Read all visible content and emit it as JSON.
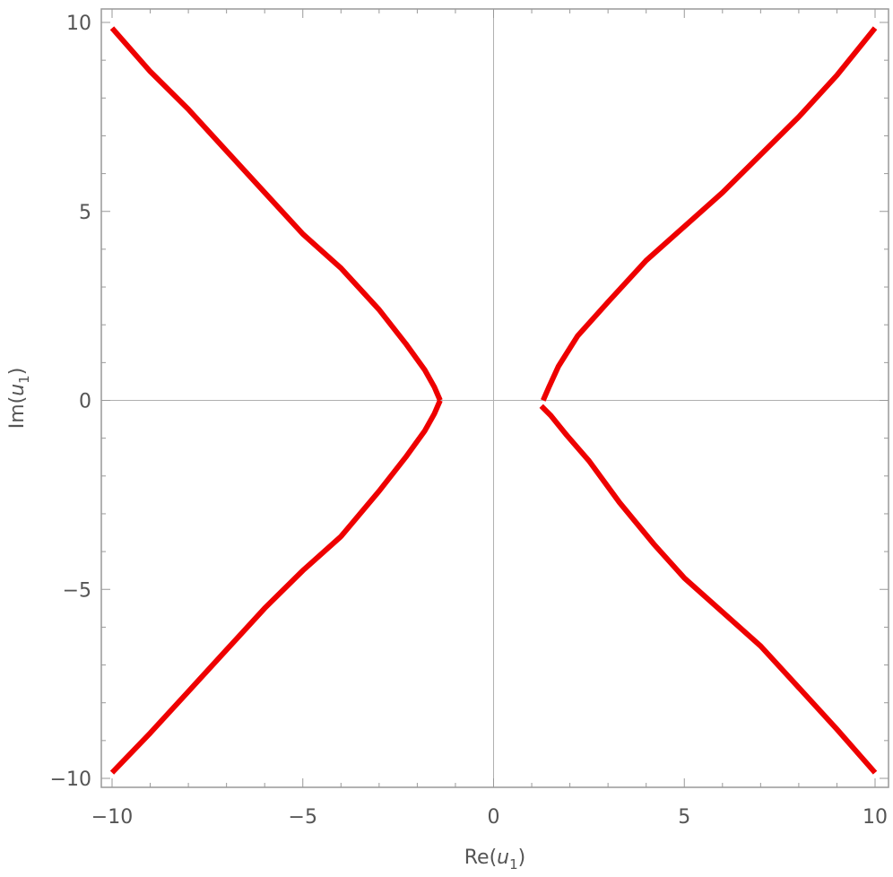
{
  "chart_data": {
    "type": "line",
    "title": "",
    "xlabel": "Re(u1)",
    "ylabel": "Im(u1)",
    "xlabel_base": "Re(",
    "xlabel_var": "u",
    "xlabel_sub": "1",
    "xlabel_close": ")",
    "ylabel_base": "Im(",
    "ylabel_var": "u",
    "ylabel_sub": "1",
    "ylabel_close": ")",
    "xlim": [
      -10,
      10
    ],
    "ylim": [
      -10,
      10
    ],
    "grid": false,
    "axes_through_origin": true,
    "line_color": "#ee0000",
    "x_major_ticks": [
      {
        "value": -10,
        "label": "−10"
      },
      {
        "value": -5,
        "label": "−5"
      },
      {
        "value": 0,
        "label": "0"
      },
      {
        "value": 5,
        "label": "5"
      },
      {
        "value": 10,
        "label": "10"
      }
    ],
    "y_major_ticks": [
      {
        "value": 10,
        "label": "10"
      },
      {
        "value": 5,
        "label": "5"
      },
      {
        "value": 0,
        "label": "0"
      },
      {
        "value": -5,
        "label": "−5"
      },
      {
        "value": -10,
        "label": "−10"
      }
    ],
    "minor_tick_step": 1,
    "series": [
      {
        "points": [
          [
            -10,
            9.85
          ],
          [
            -9,
            8.7
          ],
          [
            -8,
            7.7
          ],
          [
            -7,
            6.6
          ],
          [
            -6,
            5.5
          ],
          [
            -5,
            4.4
          ],
          [
            -4,
            3.5
          ],
          [
            -3,
            2.4
          ],
          [
            -2.3,
            1.5
          ],
          [
            -1.8,
            0.8
          ],
          [
            -1.55,
            0.35
          ],
          [
            -1.4,
            0
          ]
        ]
      },
      {
        "points": [
          [
            -1.4,
            0
          ],
          [
            -1.55,
            -0.35
          ],
          [
            -1.8,
            -0.8
          ],
          [
            -2.3,
            -1.5
          ],
          [
            -3,
            -2.4
          ],
          [
            -4,
            -3.6
          ],
          [
            -5,
            -4.5
          ],
          [
            -6,
            -5.5
          ],
          [
            -7,
            -6.6
          ],
          [
            -8,
            -7.7
          ],
          [
            -9,
            -8.8
          ],
          [
            -10,
            -9.85
          ]
        ]
      },
      {
        "points": [
          [
            10,
            9.85
          ],
          [
            9,
            8.6
          ],
          [
            8,
            7.5
          ],
          [
            7,
            6.5
          ],
          [
            6,
            5.5
          ],
          [
            5,
            4.6
          ],
          [
            4,
            3.7
          ],
          [
            3,
            2.6
          ],
          [
            2.2,
            1.7
          ],
          [
            1.7,
            0.9
          ],
          [
            1.45,
            0.35
          ],
          [
            1.3,
            0
          ]
        ]
      },
      {
        "points": [
          [
            1.25,
            -0.15
          ],
          [
            1.5,
            -0.4
          ],
          [
            1.9,
            -0.9
          ],
          [
            2.5,
            -1.6
          ],
          [
            3.3,
            -2.7
          ],
          [
            4.2,
            -3.8
          ],
          [
            5,
            -4.7
          ],
          [
            6,
            -5.6
          ],
          [
            7,
            -6.5
          ],
          [
            8,
            -7.6
          ],
          [
            9,
            -8.7
          ],
          [
            10,
            -9.85
          ]
        ]
      }
    ]
  }
}
